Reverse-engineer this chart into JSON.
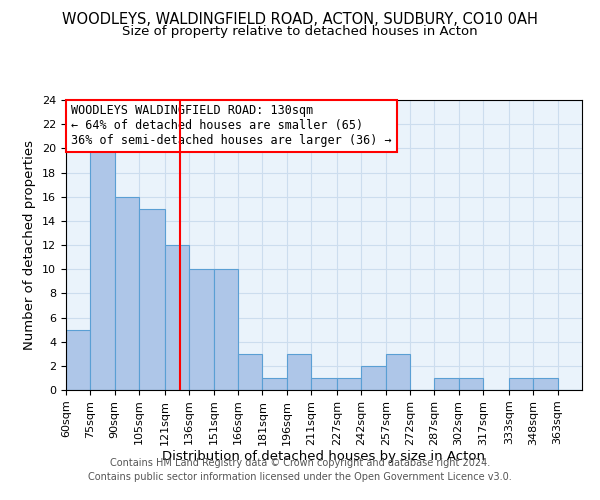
{
  "title": "WOODLEYS, WALDINGFIELD ROAD, ACTON, SUDBURY, CO10 0AH",
  "subtitle": "Size of property relative to detached houses in Acton",
  "xlabel": "Distribution of detached houses by size in Acton",
  "ylabel": "Number of detached properties",
  "footnote1": "Contains HM Land Registry data © Crown copyright and database right 2024.",
  "footnote2": "Contains public sector information licensed under the Open Government Licence v3.0.",
  "annotation_line1": "WOODLEYS WALDINGFIELD ROAD: 130sqm",
  "annotation_line2": "← 64% of detached houses are smaller (65)",
  "annotation_line3": "36% of semi-detached houses are larger (36) →",
  "bar_color": "#aec6e8",
  "bar_edgecolor": "#5a9fd4",
  "vline_color": "red",
  "vline_x": 130,
  "categories": [
    "60sqm",
    "75sqm",
    "90sqm",
    "105sqm",
    "121sqm",
    "136sqm",
    "151sqm",
    "166sqm",
    "181sqm",
    "196sqm",
    "211sqm",
    "227sqm",
    "242sqm",
    "257sqm",
    "272sqm",
    "287sqm",
    "302sqm",
    "317sqm",
    "333sqm",
    "348sqm",
    "363sqm"
  ],
  "bin_edges": [
    60,
    75,
    90,
    105,
    121,
    136,
    151,
    166,
    181,
    196,
    211,
    227,
    242,
    257,
    272,
    287,
    302,
    317,
    333,
    348,
    363,
    378
  ],
  "values": [
    5,
    20,
    16,
    15,
    12,
    10,
    10,
    3,
    1,
    3,
    1,
    1,
    2,
    3,
    0,
    1,
    1,
    0,
    1,
    1,
    0
  ],
  "ylim": [
    0,
    24
  ],
  "yticks": [
    0,
    2,
    4,
    6,
    8,
    10,
    12,
    14,
    16,
    18,
    20,
    22,
    24
  ],
  "grid_color": "#ccddee",
  "background_color": "#eaf3fb",
  "title_fontsize": 10.5,
  "subtitle_fontsize": 9.5,
  "tick_fontsize": 8,
  "label_fontsize": 9.5,
  "annotation_fontsize": 8.5,
  "footnote_fontsize": 7
}
